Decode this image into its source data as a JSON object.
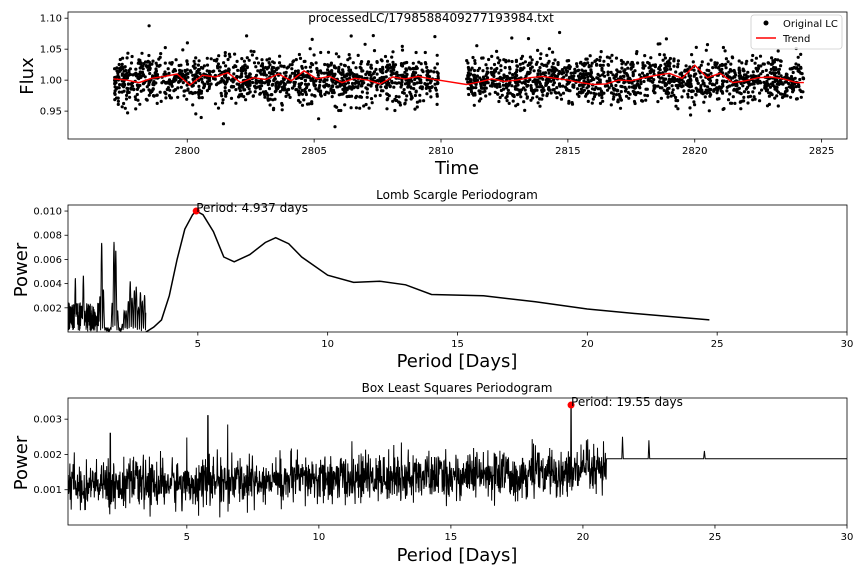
{
  "chart_data": [
    {
      "type": "scatter",
      "title": "processedLC/1798588409277193984.txt",
      "xlabel": "Time",
      "ylabel": "Flux",
      "xlim": [
        2795.3,
        2826.0
      ],
      "ylim": [
        0.905,
        1.11
      ],
      "xticks": [
        2800,
        2805,
        2810,
        2815,
        2820,
        2825
      ],
      "yticks": [
        0.95,
        1.0,
        1.05,
        1.1
      ],
      "xtick_labels": [
        "2800",
        "2805",
        "2810",
        "2815",
        "2820",
        "2825"
      ],
      "ytick_labels": [
        "0.95",
        "1.00",
        "1.05",
        "1.10"
      ],
      "grid": false,
      "legend_position": "top-right",
      "series": [
        {
          "name": "Original LC",
          "kind": "points",
          "color": "#000000",
          "segments": [
            [
              2797.1,
              2809.9
            ],
            [
              2811.0,
              2824.3
            ]
          ],
          "center": 1.0,
          "scatter_sd": 0.022
        },
        {
          "name": "Trend",
          "kind": "line",
          "color": "#ff0000",
          "x": [
            2797.1,
            2797.6,
            2798.1,
            2798.6,
            2799.1,
            2799.6,
            2800.1,
            2800.6,
            2801.1,
            2801.6,
            2802.1,
            2802.6,
            2803.1,
            2803.6,
            2804.1,
            2804.6,
            2805.1,
            2805.6,
            2806.1,
            2806.6,
            2807.1,
            2807.6,
            2808.1,
            2808.6,
            2809.1,
            2809.6,
            2809.9,
            2811.0,
            2811.5,
            2812.0,
            2812.5,
            2813.0,
            2813.5,
            2814.0,
            2814.5,
            2815.0,
            2815.5,
            2816.0,
            2816.5,
            2817.0,
            2817.5,
            2818.0,
            2818.5,
            2819.0,
            2819.5,
            2820.0,
            2820.5,
            2821.0,
            2821.5,
            2822.0,
            2822.5,
            2823.0,
            2823.5,
            2824.0,
            2824.3
          ],
          "y": [
            1.002,
            1.0,
            0.996,
            1.003,
            1.006,
            1.01,
            0.992,
            1.008,
            1.005,
            1.012,
            0.996,
            1.004,
            1.001,
            1.01,
            0.999,
            1.015,
            1.002,
            1.006,
            0.996,
            1.003,
            1.0,
            0.994,
            1.005,
            1.002,
            1.006,
            1.002,
            1.0,
            0.993,
            0.997,
            1.002,
            0.998,
            1.0,
            1.004,
            1.006,
            1.003,
            1.0,
            0.996,
            0.993,
            0.994,
            1.0,
            0.999,
            1.004,
            1.008,
            1.011,
            1.003,
            1.024,
            1.004,
            1.011,
            0.996,
            0.999,
            1.004,
            1.005,
            1.002,
            0.996,
            0.996
          ]
        }
      ]
    },
    {
      "type": "line",
      "title": "Lomb Scargle Periodogram",
      "xlabel": "Period [Days]",
      "ylabel": "Power",
      "xlim": [
        0,
        30
      ],
      "ylim": [
        0,
        0.0105
      ],
      "xticks": [
        5,
        10,
        15,
        20,
        25,
        30
      ],
      "yticks": [
        0.002,
        0.004,
        0.006,
        0.008,
        0.01
      ],
      "xtick_labels": [
        "5",
        "10",
        "15",
        "20",
        "25",
        "30"
      ],
      "ytick_labels": [
        "0.002",
        "0.004",
        "0.006",
        "0.008",
        "0.010"
      ],
      "grid": false,
      "annotation": {
        "text": "Period: 4.937 days",
        "x": 4.937,
        "y": 0.01,
        "marker_color": "#ff0000"
      },
      "series": [
        {
          "name": "",
          "color": "#000000",
          "x": [
            3.0,
            3.3,
            3.6,
            3.9,
            4.2,
            4.5,
            4.8,
            4.937,
            5.2,
            5.6,
            6.0,
            6.4,
            7.0,
            7.6,
            8.0,
            8.5,
            9.0,
            10.0,
            11.0,
            12.0,
            13.0,
            14.0,
            16.0,
            18.0,
            20.0,
            22.0,
            24.7
          ],
          "y": [
            0.0,
            0.0004,
            0.001,
            0.003,
            0.006,
            0.0085,
            0.0097,
            0.01,
            0.0097,
            0.0083,
            0.0062,
            0.0058,
            0.0064,
            0.0074,
            0.0078,
            0.0073,
            0.0062,
            0.0047,
            0.0041,
            0.0042,
            0.0039,
            0.0031,
            0.003,
            0.0025,
            0.0019,
            0.0015,
            0.001
          ]
        }
      ],
      "short_period_peaks": {
        "x": [
          0.3,
          0.6,
          1.3,
          1.8,
          2.2,
          2.4,
          2.6,
          2.8,
          3.0
        ],
        "y": [
          0.0053,
          0.0048,
          0.0074,
          0.0083,
          0.002,
          0.0042,
          0.004,
          0.0033,
          0.0036
        ]
      }
    },
    {
      "type": "line",
      "title": "Box Least Squares Periodogram",
      "xlabel": "Period [Days]",
      "ylabel": "Power",
      "xlim": [
        0.5,
        30
      ],
      "ylim": [
        0.0,
        0.0036
      ],
      "xticks": [
        5,
        10,
        15,
        20,
        25,
        30
      ],
      "yticks": [
        0.001,
        0.002,
        0.003
      ],
      "xtick_labels": [
        "5",
        "10",
        "15",
        "20",
        "25",
        "30"
      ],
      "ytick_labels": [
        "0.001",
        "0.002",
        "0.003"
      ],
      "grid": false,
      "annotation": {
        "text": "Period: 19.55 days",
        "x": 19.55,
        "y": 0.0034,
        "marker_color": "#ff0000"
      },
      "series": [
        {
          "name": "",
          "color": "#000000",
          "noisy_range": [
            0.5,
            20.9
          ],
          "baseline_start": 0.0011,
          "baseline_end": 0.0015,
          "flat_range": [
            20.9,
            30
          ],
          "flat_level": 0.00188,
          "spikes": [
            {
              "x": 2.1,
              "y": 0.0026
            },
            {
              "x": 5.8,
              "y": 0.0031
            },
            {
              "x": 19.55,
              "y": 0.0034
            },
            {
              "x": 21.5,
              "y": 0.0025
            },
            {
              "x": 22.5,
              "y": 0.0024
            },
            {
              "x": 24.6,
              "y": 0.0021
            }
          ]
        }
      ]
    }
  ]
}
